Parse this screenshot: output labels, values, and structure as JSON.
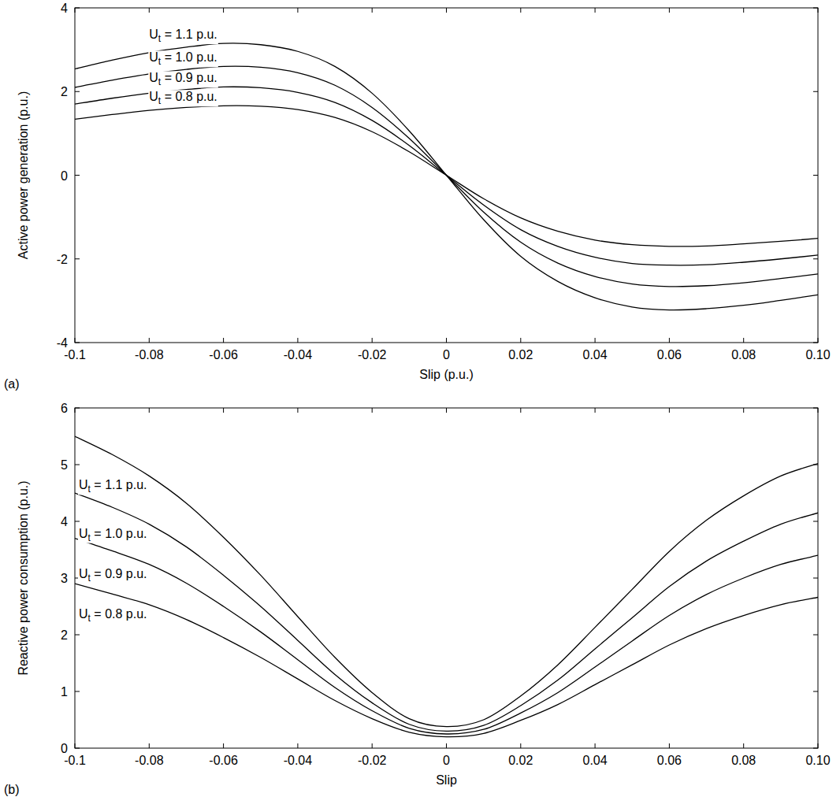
{
  "chart_data": [
    {
      "type": "line",
      "panel_label": "(a)",
      "x_label": "Slip (p.u.)",
      "y_label": "Active power generation (p.u.)",
      "x": [
        -0.1,
        -0.09,
        -0.08,
        -0.07,
        -0.06,
        -0.05,
        -0.04,
        -0.03,
        -0.02,
        -0.01,
        0,
        0.01,
        0.02,
        0.03,
        0.04,
        0.05,
        0.06,
        0.07,
        0.08,
        0.09,
        0.1
      ],
      "series": [
        {
          "name": "Ut = 1.1 p.u.",
          "color": "#000000",
          "values": [
            2.54,
            2.75,
            2.93,
            3.06,
            3.15,
            3.12,
            2.96,
            2.6,
            1.96,
            1.06,
            0,
            -1.06,
            -1.94,
            -2.54,
            -2.93,
            -3.15,
            -3.22,
            -3.19,
            -3.11,
            -2.99,
            -2.86
          ]
        },
        {
          "name": "Ut = 1.0 p.u.",
          "color": "#000000",
          "values": [
            2.1,
            2.27,
            2.42,
            2.53,
            2.6,
            2.58,
            2.45,
            2.15,
            1.62,
            0.88,
            0,
            -0.88,
            -1.6,
            -2.1,
            -2.42,
            -2.6,
            -2.66,
            -2.64,
            -2.57,
            -2.47,
            -2.36
          ]
        },
        {
          "name": "Ut = 0.9 p.u.",
          "color": "#000000",
          "values": [
            1.7,
            1.84,
            1.96,
            2.05,
            2.11,
            2.09,
            1.98,
            1.74,
            1.31,
            0.71,
            0,
            -0.71,
            -1.3,
            -1.7,
            -1.96,
            -2.11,
            -2.15,
            -2.14,
            -2.08,
            -2.0,
            -1.91
          ]
        },
        {
          "name": "Ut = 0.8 p.u.",
          "color": "#000000",
          "values": [
            1.34,
            1.45,
            1.55,
            1.62,
            1.66,
            1.65,
            1.57,
            1.38,
            1.04,
            0.56,
            0,
            -0.56,
            -1.02,
            -1.34,
            -1.55,
            -1.66,
            -1.7,
            -1.69,
            -1.64,
            -1.58,
            -1.51
          ]
        }
      ],
      "xlim": [
        -0.1,
        0.1
      ],
      "ylim": [
        -4,
        4
      ],
      "xticks": [
        -0.1,
        -0.08,
        -0.06,
        -0.04,
        -0.02,
        0,
        0.02,
        0.04,
        0.06,
        0.08,
        {
          "value": 0.1,
          "label": "0.10"
        }
      ],
      "yticks": [
        -4,
        -2,
        0,
        2,
        4
      ],
      "grid": false
    },
    {
      "type": "line",
      "panel_label": "(b)",
      "x_label": "Slip",
      "y_label": "Reactive power consumption (p.u.)",
      "x": [
        -0.1,
        -0.09,
        -0.08,
        -0.07,
        -0.06,
        -0.05,
        -0.04,
        -0.03,
        -0.02,
        -0.01,
        0,
        0.01,
        0.02,
        0.03,
        0.04,
        0.05,
        0.06,
        0.07,
        0.08,
        0.09,
        0.1
      ],
      "series": [
        {
          "name": "Ut = 1.1 p.u.",
          "color": "#000000",
          "values": [
            5.5,
            5.18,
            4.8,
            4.32,
            3.72,
            3.05,
            2.32,
            1.6,
            0.98,
            0.52,
            0.38,
            0.5,
            0.92,
            1.47,
            2.13,
            2.8,
            3.47,
            4.02,
            4.45,
            4.8,
            5.02
          ]
        },
        {
          "name": "Ut = 1.0 p.u.",
          "color": "#000000",
          "values": [
            4.5,
            4.25,
            3.95,
            3.55,
            3.05,
            2.5,
            1.9,
            1.3,
            0.8,
            0.42,
            0.3,
            0.4,
            0.75,
            1.2,
            1.75,
            2.3,
            2.85,
            3.3,
            3.65,
            3.95,
            4.15
          ]
        },
        {
          "name": "Ut = 0.9 p.u.",
          "color": "#000000",
          "values": [
            3.7,
            3.48,
            3.24,
            2.91,
            2.5,
            2.05,
            1.56,
            1.07,
            0.66,
            0.35,
            0.25,
            0.33,
            0.62,
            0.98,
            1.43,
            1.89,
            2.34,
            2.71,
            3.0,
            3.24,
            3.4
          ]
        },
        {
          "name": "Ut = 0.8 p.u.",
          "color": "#000000",
          "values": [
            2.9,
            2.72,
            2.53,
            2.27,
            1.95,
            1.6,
            1.22,
            0.84,
            0.52,
            0.28,
            0.2,
            0.26,
            0.49,
            0.77,
            1.12,
            1.47,
            1.82,
            2.11,
            2.34,
            2.53,
            2.66
          ]
        }
      ],
      "xlim": [
        -0.1,
        0.1
      ],
      "ylim": [
        0,
        6
      ],
      "xticks": [
        -0.1,
        -0.08,
        -0.06,
        -0.04,
        -0.02,
        0,
        0.02,
        0.04,
        0.06,
        0.08,
        {
          "value": 0.1,
          "label": "0.10"
        }
      ],
      "yticks": [
        0,
        1,
        2,
        3,
        4,
        5,
        6
      ],
      "grid": false
    }
  ]
}
